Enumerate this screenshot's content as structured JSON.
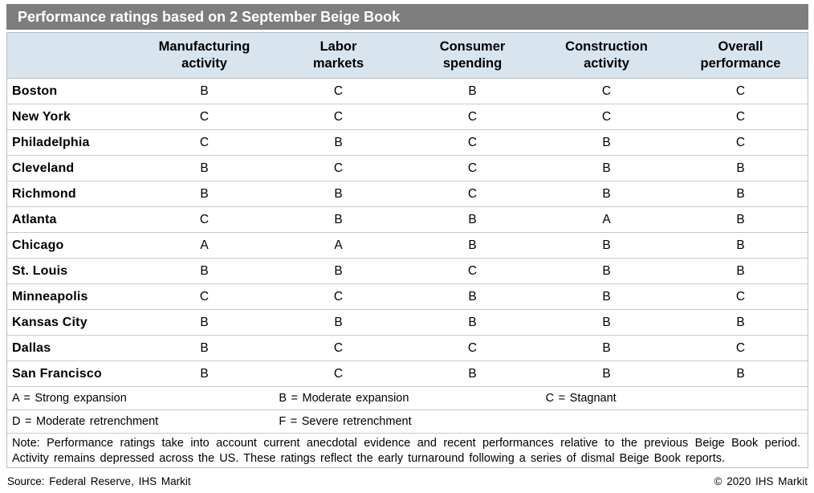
{
  "title": "Performance ratings based on 2 September Beige Book",
  "colors": {
    "title_bar_bg": "#7e7e7e",
    "title_text": "#ffffff",
    "header_row_bg": "#d9e5ee",
    "border": "#b9bdc1",
    "row_divider": "#c6cacd",
    "body_text": "#000000"
  },
  "chart_data": {
    "type": "table",
    "title": "Performance ratings based on 2 September Beige Book",
    "columns": [
      {
        "line1": "Manufacturing",
        "line2": "activity"
      },
      {
        "line1": "Labor",
        "line2": "markets"
      },
      {
        "line1": "Consumer",
        "line2": "spending"
      },
      {
        "line1": "Construction",
        "line2": "activity"
      },
      {
        "line1": "Overall",
        "line2": "performance"
      }
    ],
    "rows": [
      {
        "city": "Boston",
        "grades": [
          "B",
          "C",
          "B",
          "C",
          "C"
        ]
      },
      {
        "city": "New York",
        "grades": [
          "C",
          "C",
          "C",
          "C",
          "C"
        ]
      },
      {
        "city": "Philadelphia",
        "grades": [
          "C",
          "B",
          "C",
          "B",
          "C"
        ]
      },
      {
        "city": "Cleveland",
        "grades": [
          "B",
          "C",
          "C",
          "B",
          "B"
        ]
      },
      {
        "city": "Richmond",
        "grades": [
          "B",
          "B",
          "C",
          "B",
          "B"
        ]
      },
      {
        "city": "Atlanta",
        "grades": [
          "C",
          "B",
          "B",
          "A",
          "B"
        ]
      },
      {
        "city": "Chicago",
        "grades": [
          "A",
          "A",
          "B",
          "B",
          "B"
        ]
      },
      {
        "city": "St. Louis",
        "grades": [
          "B",
          "B",
          "C",
          "B",
          "B"
        ]
      },
      {
        "city": "Minneapolis",
        "grades": [
          "C",
          "C",
          "B",
          "B",
          "C"
        ]
      },
      {
        "city": "Kansas City",
        "grades": [
          "B",
          "B",
          "B",
          "B",
          "B"
        ]
      },
      {
        "city": "Dallas",
        "grades": [
          "B",
          "C",
          "C",
          "B",
          "C"
        ]
      },
      {
        "city": "San Francisco",
        "grades": [
          "B",
          "C",
          "B",
          "B",
          "B"
        ]
      }
    ],
    "legend": {
      "a": "A = Strong expansion",
      "b": "B = Moderate expansion",
      "c": "C = Stagnant",
      "d": "D = Moderate retrenchment",
      "f": "F = Severe retrenchment"
    },
    "note": {
      "line1": "Note: Performance ratings take into account current anecdotal evidence and recent performances relative to the previous Beige Book period.",
      "line2": "Activity remains depressed across the US. These ratings reflect the early turnaround following a series of dismal Beige Book reports."
    },
    "footer": {
      "source": "Source: Federal Reserve, IHS Markit",
      "copyright": "© 2020 IHS Markit"
    }
  }
}
